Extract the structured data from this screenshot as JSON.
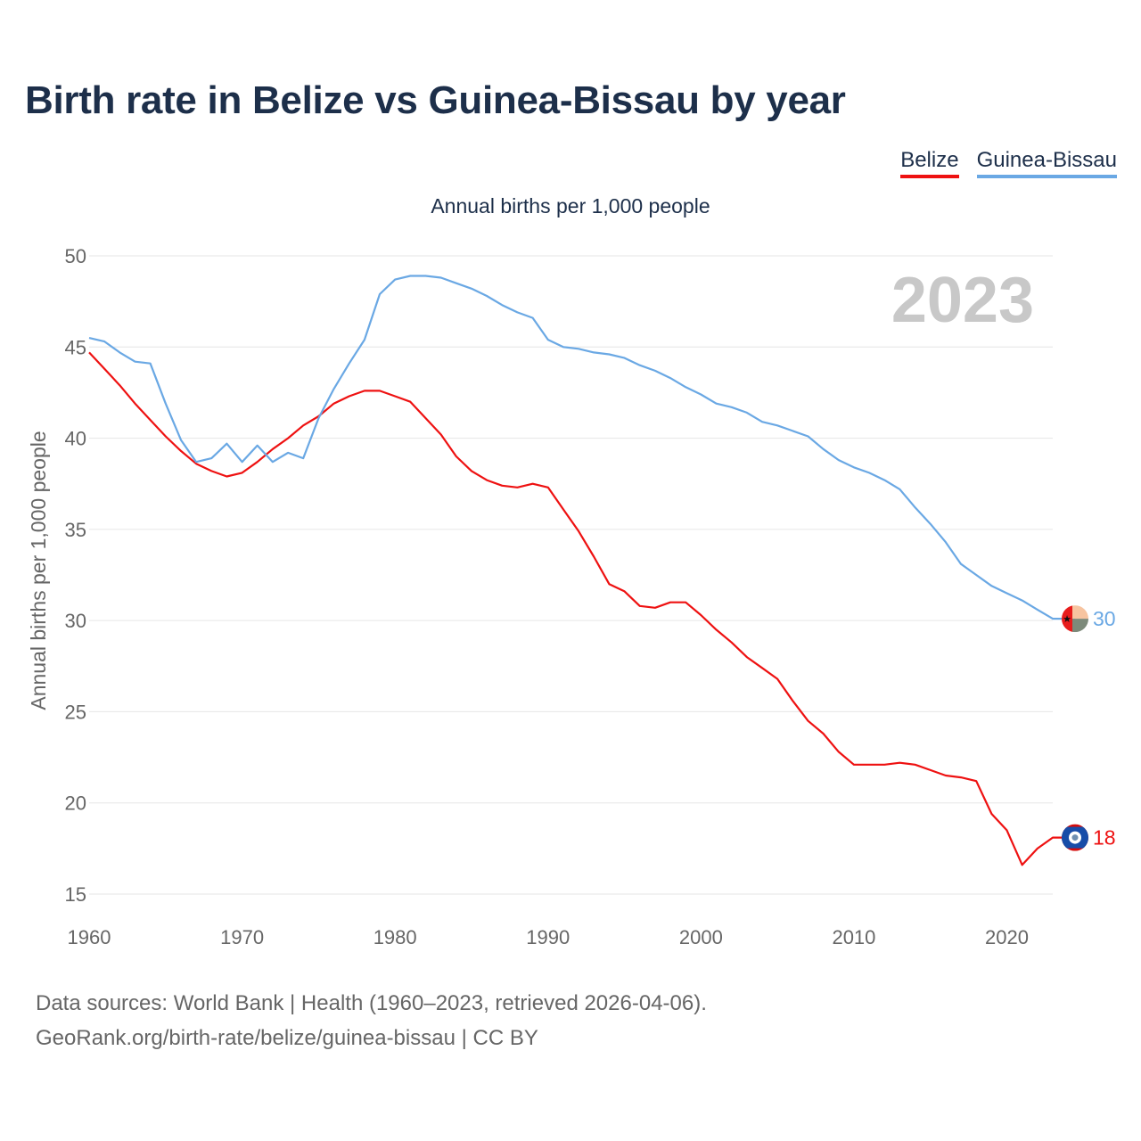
{
  "title": "Birth rate in Belize vs Guinea-Bissau by year",
  "subtitle": "Annual births per 1,000 people",
  "watermark_year": "2023",
  "footer": {
    "line1": "Data sources: World Bank | Health (1960–2023, retrieved 2026-04-06).",
    "line2": "GeoRank.org/birth-rate/belize/guinea-bissau | CC BY"
  },
  "colors": {
    "belize": "#ee1111",
    "guinea_bissau": "#6aa8e4",
    "grid": "#e6e6e6",
    "tick_text": "#666666",
    "title": "#1d2f4a"
  },
  "chart_data": {
    "type": "line",
    "title": "Birth rate in Belize vs Guinea-Bissau by year",
    "xlabel": "",
    "ylabel": "Annual births per 1,000 people",
    "xlim": [
      1960,
      2023
    ],
    "ylim": [
      15,
      50
    ],
    "x_ticks": [
      1960,
      1970,
      1980,
      1990,
      2000,
      2010,
      2020
    ],
    "y_ticks": [
      15,
      20,
      25,
      30,
      35,
      40,
      45,
      50
    ],
    "x": [
      1960,
      1961,
      1962,
      1963,
      1964,
      1965,
      1966,
      1967,
      1968,
      1969,
      1970,
      1971,
      1972,
      1973,
      1974,
      1975,
      1976,
      1977,
      1978,
      1979,
      1980,
      1981,
      1982,
      1983,
      1984,
      1985,
      1986,
      1987,
      1988,
      1989,
      1990,
      1991,
      1992,
      1993,
      1994,
      1995,
      1996,
      1997,
      1998,
      1999,
      2000,
      2001,
      2002,
      2003,
      2004,
      2005,
      2006,
      2007,
      2008,
      2009,
      2010,
      2011,
      2012,
      2013,
      2014,
      2015,
      2016,
      2017,
      2018,
      2019,
      2020,
      2021,
      2022,
      2023
    ],
    "series": [
      {
        "name": "Belize",
        "end_label": "18",
        "values": [
          44.7,
          43.8,
          42.9,
          41.9,
          41.0,
          40.1,
          39.3,
          38.6,
          38.2,
          37.9,
          38.1,
          38.7,
          39.4,
          40.0,
          40.7,
          41.2,
          41.9,
          42.3,
          42.6,
          42.6,
          42.3,
          42.0,
          41.1,
          40.2,
          39.0,
          38.2,
          37.7,
          37.4,
          37.3,
          37.5,
          37.3,
          36.1,
          34.9,
          33.5,
          32.0,
          31.6,
          30.8,
          30.7,
          31.0,
          31.0,
          30.3,
          29.5,
          28.8,
          28.0,
          27.4,
          26.8,
          25.6,
          24.5,
          23.8,
          22.8,
          22.1,
          22.1,
          22.1,
          22.2,
          22.1,
          21.8,
          21.5,
          21.4,
          21.2,
          19.4,
          18.5,
          16.6,
          17.5,
          18.1
        ]
      },
      {
        "name": "Guinea-Bissau",
        "end_label": "30",
        "values": [
          45.5,
          45.3,
          44.7,
          44.2,
          44.1,
          41.9,
          39.9,
          38.7,
          38.9,
          39.7,
          38.7,
          39.6,
          38.7,
          39.2,
          38.9,
          41.1,
          42.7,
          44.1,
          45.4,
          47.9,
          48.7,
          48.9,
          48.9,
          48.8,
          48.5,
          48.2,
          47.8,
          47.3,
          46.9,
          46.6,
          45.4,
          45.0,
          44.9,
          44.7,
          44.6,
          44.4,
          44.0,
          43.7,
          43.3,
          42.8,
          42.4,
          41.9,
          41.7,
          41.4,
          40.9,
          40.7,
          40.4,
          40.1,
          39.4,
          38.8,
          38.4,
          38.1,
          37.7,
          37.2,
          36.2,
          35.3,
          34.3,
          33.1,
          32.5,
          31.9,
          31.5,
          31.1,
          30.6,
          30.1
        ]
      }
    ]
  }
}
